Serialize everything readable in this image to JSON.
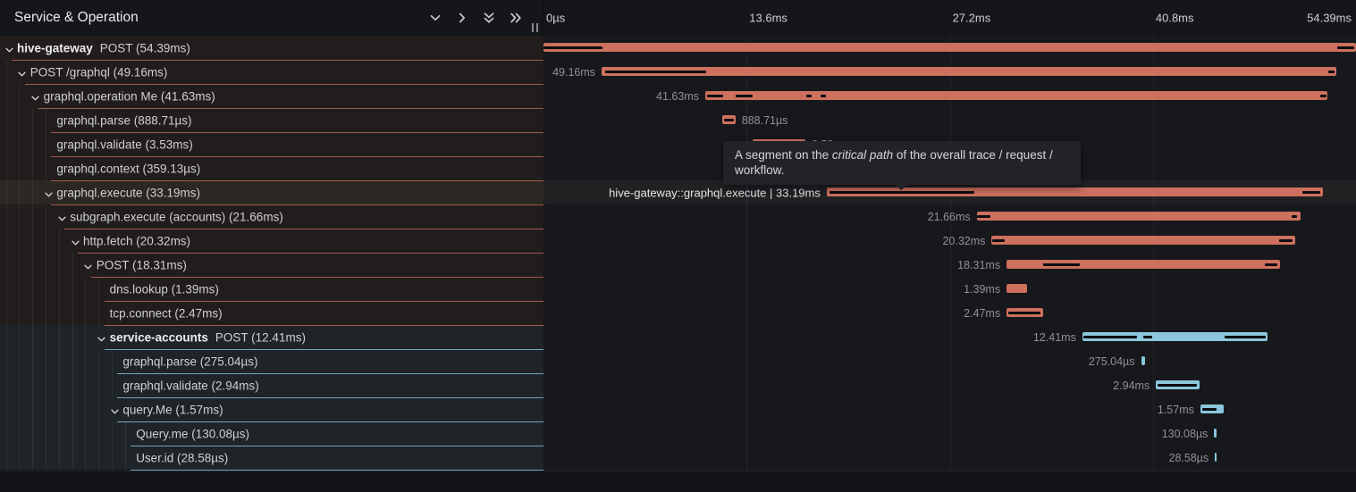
{
  "header": {
    "title": "Service & Operation",
    "icons": [
      "chevron-down",
      "chevron-right",
      "double-chevron-down",
      "double-chevron-right"
    ]
  },
  "timeline": {
    "total_ms": 54.39,
    "ticks": [
      {
        "label": "0µs",
        "ms": 0
      },
      {
        "label": "13.6ms",
        "ms": 13.6
      },
      {
        "label": "27.2ms",
        "ms": 27.2
      },
      {
        "label": "40.8ms",
        "ms": 40.8
      },
      {
        "label": "54.39ms",
        "ms": 54.39
      }
    ]
  },
  "colors": {
    "gateway_bar": "#cd705e",
    "accounts_bar": "#8ac7de",
    "critical_path": "#0c0d10",
    "gateway_border": "rgba(205,111,92,0.75)",
    "accounts_border": "rgba(137,198,221,0.8)"
  },
  "tooltip": {
    "text_before": "A segment on the ",
    "text_italic": "critical path",
    "text_after": " of the overall trace / request / workflow."
  },
  "spans": [
    {
      "key": "hive-gateway-post",
      "depth": 0,
      "expandable": true,
      "service": "gateway",
      "service_name": "hive-gateway",
      "label": "POST (54.39ms)",
      "start_ms": 0,
      "duration_ms": 54.39,
      "right_label": null,
      "label_side": "left",
      "hovered": false,
      "critical_ms": [
        [
          0,
          3.95
        ],
        [
          53.11,
          54.25
        ]
      ]
    },
    {
      "key": "post-graphql",
      "depth": 1,
      "expandable": true,
      "service": "gateway",
      "service_name": null,
      "label": "POST /graphql (49.16ms)",
      "start_ms": 3.89,
      "duration_ms": 49.16,
      "right_label": "49.16ms",
      "label_side": "left",
      "hovered": false,
      "critical_ms": [
        [
          4.13,
          10.89
        ],
        [
          52.52,
          52.94
        ]
      ]
    },
    {
      "key": "graphql-operation-me",
      "depth": 2,
      "expandable": true,
      "service": "gateway",
      "service_name": null,
      "label": "graphql.operation Me (41.63ms)",
      "start_ms": 10.83,
      "duration_ms": 41.63,
      "right_label": "41.63ms",
      "label_side": "left",
      "hovered": false,
      "critical_ms": [
        [
          10.95,
          12.02
        ],
        [
          12.86,
          14.0
        ],
        [
          17.6,
          17.95
        ],
        [
          18.55,
          18.9
        ],
        [
          51.98,
          52.4
        ]
      ]
    },
    {
      "key": "graphql-parse-gw",
      "depth": 3,
      "expandable": false,
      "service": "gateway",
      "service_name": null,
      "label": "graphql.parse (888.71µs)",
      "start_ms": 11.96,
      "duration_ms": 0.88871,
      "right_label": "888.71µs",
      "label_side": "right",
      "hovered": false,
      "critical_ms": [
        [
          12.08,
          12.74
        ]
      ]
    },
    {
      "key": "graphql-validate-gw",
      "depth": 3,
      "expandable": false,
      "service": "gateway",
      "service_name": null,
      "label": "graphql.validate (3.53ms)",
      "start_ms": 14.0,
      "duration_ms": 3.53,
      "right_label": "3.53ms",
      "label_side": "right",
      "hovered": false,
      "critical_ms": []
    },
    {
      "key": "graphql-context",
      "depth": 3,
      "expandable": false,
      "service": "gateway",
      "service_name": null,
      "label": "graphql.context (359.13µs)",
      "start_ms": 14.0,
      "duration_ms": 0.35913,
      "right_label": "359.13µs",
      "label_side": "right",
      "hovered": false,
      "critical_ms": []
    },
    {
      "key": "graphql-execute",
      "depth": 3,
      "expandable": true,
      "service": "gateway",
      "service_name": null,
      "label": "graphql.execute (33.19ms)",
      "start_ms": 18.96,
      "duration_ms": 33.19,
      "right_label": "hive-gateway::graphql.execute | 33.19ms",
      "label_side": "left",
      "hovered": true,
      "critical_ms": [
        [
          19.14,
          28.83
        ],
        [
          50.78,
          51.98
        ]
      ]
    },
    {
      "key": "subgraph-execute-accounts",
      "depth": 4,
      "expandable": true,
      "service": "gateway",
      "service_name": null,
      "label": "subgraph.execute (accounts) (21.66ms)",
      "start_ms": 29.0,
      "duration_ms": 21.66,
      "right_label": "21.66ms",
      "label_side": "left",
      "hovered": false,
      "critical_ms": [
        [
          29.01,
          29.91
        ],
        [
          50.07,
          50.43
        ]
      ]
    },
    {
      "key": "http-fetch",
      "depth": 5,
      "expandable": true,
      "service": "gateway",
      "service_name": null,
      "label": "http.fetch (20.32ms)",
      "start_ms": 30.0,
      "duration_ms": 20.32,
      "right_label": "20.32ms",
      "label_side": "left",
      "hovered": false,
      "critical_ms": [
        [
          30.03,
          30.87
        ],
        [
          49.23,
          50.13
        ]
      ]
    },
    {
      "key": "post-inner",
      "depth": 6,
      "expandable": true,
      "service": "gateway",
      "service_name": null,
      "label": "POST (18.31ms)",
      "start_ms": 31.0,
      "duration_ms": 18.31,
      "right_label": "18.31ms",
      "label_side": "left",
      "hovered": false,
      "critical_ms": [
        [
          33.44,
          35.89
        ],
        [
          48.28,
          49.11
        ]
      ]
    },
    {
      "key": "dns-lookup",
      "depth": 7,
      "expandable": false,
      "service": "gateway",
      "service_name": null,
      "label": "dns.lookup (1.39ms)",
      "start_ms": 31.0,
      "duration_ms": 1.39,
      "right_label": "1.39ms",
      "label_side": "left",
      "hovered": false,
      "critical_ms": []
    },
    {
      "key": "tcp-connect",
      "depth": 7,
      "expandable": false,
      "service": "gateway",
      "service_name": null,
      "label": "tcp.connect (2.47ms)",
      "start_ms": 31.0,
      "duration_ms": 2.47,
      "right_label": "2.47ms",
      "label_side": "left",
      "hovered": false,
      "critical_ms": [
        [
          31.11,
          33.26
        ]
      ]
    },
    {
      "key": "service-accounts-post",
      "depth": 7,
      "expandable": true,
      "service": "accounts",
      "service_name": "service-accounts",
      "label": "POST (12.41ms)",
      "start_ms": 36.07,
      "duration_ms": 12.41,
      "right_label": "12.41ms",
      "label_side": "left",
      "hovered": false,
      "critical_ms": [
        [
          36.13,
          39.72
        ],
        [
          40.14,
          40.74
        ],
        [
          45.58,
          48.33
        ]
      ]
    },
    {
      "key": "graphql-parse-acc",
      "depth": 8,
      "expandable": false,
      "service": "accounts",
      "service_name": null,
      "label": "graphql.parse (275.04µs)",
      "start_ms": 40.0,
      "duration_ms": 0.27504,
      "right_label": "275.04µs",
      "label_side": "left",
      "hovered": false,
      "critical_ms": []
    },
    {
      "key": "graphql-validate-acc",
      "depth": 8,
      "expandable": false,
      "service": "accounts",
      "service_name": null,
      "label": "graphql.validate (2.94ms)",
      "start_ms": 41.0,
      "duration_ms": 2.94,
      "right_label": "2.94ms",
      "label_side": "left",
      "hovered": false,
      "critical_ms": [
        [
          41.1,
          43.73
        ]
      ]
    },
    {
      "key": "query-me",
      "depth": 8,
      "expandable": true,
      "service": "accounts",
      "service_name": null,
      "label": "query.Me (1.57ms)",
      "start_ms": 43.97,
      "duration_ms": 1.57,
      "right_label": "1.57ms",
      "label_side": "left",
      "hovered": false,
      "critical_ms": [
        [
          44.09,
          45.05
        ]
      ]
    },
    {
      "key": "query-me-resolver",
      "depth": 9,
      "expandable": false,
      "service": "accounts",
      "service_name": null,
      "label": "Query.me (130.08µs)",
      "start_ms": 44.9,
      "duration_ms": 0.13008,
      "right_label": "130.08µs",
      "label_side": "left",
      "hovered": false,
      "critical_ms": []
    },
    {
      "key": "user-id",
      "depth": 9,
      "expandable": false,
      "service": "accounts",
      "service_name": null,
      "label": "User.id (28.58µs)",
      "start_ms": 44.95,
      "duration_ms": 0.02858,
      "right_label": "28.58µs",
      "label_side": "left",
      "hovered": false,
      "critical_ms": []
    }
  ]
}
